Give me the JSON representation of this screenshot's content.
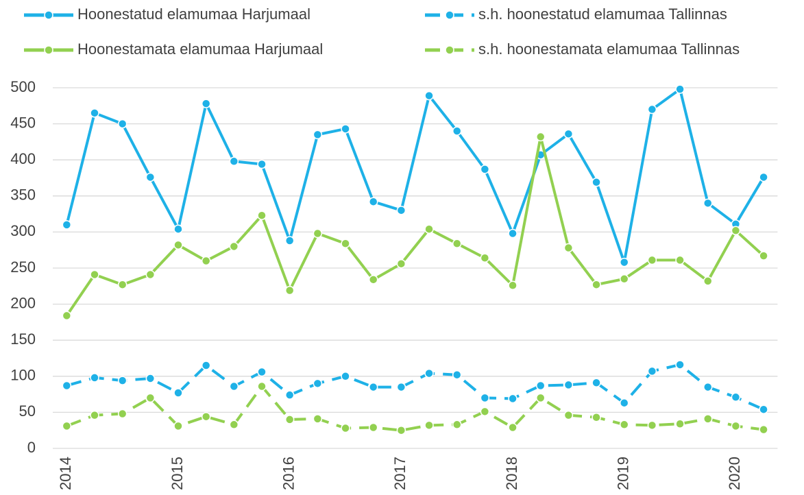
{
  "chart_data": {
    "type": "line",
    "categories": [
      "2014",
      null,
      null,
      null,
      "2015",
      null,
      null,
      null,
      "2016",
      null,
      null,
      null,
      "2017",
      null,
      null,
      null,
      "2018",
      null,
      null,
      null,
      "2019",
      null,
      null,
      null,
      "2020",
      null
    ],
    "series": [
      {
        "name": "Hoonestatud elamumaa Harjumaal",
        "color": "#1eb1e7",
        "dashed": false,
        "values": [
          310,
          465,
          450,
          376,
          304,
          478,
          398,
          394,
          288,
          435,
          443,
          342,
          330,
          489,
          440,
          387,
          298,
          407,
          436,
          369,
          258,
          470,
          498,
          340,
          311,
          376
        ]
      },
      {
        "name": "s.h. hoonestatud elamumaa Tallinnas",
        "color": "#1eb1e7",
        "dashed": true,
        "values": [
          87,
          98,
          94,
          97,
          77,
          115,
          86,
          106,
          74,
          90,
          100,
          85,
          85,
          104,
          102,
          70,
          69,
          87,
          88,
          91,
          63,
          107,
          116,
          85,
          71,
          54
        ]
      },
      {
        "name": "Hoonestamata elamumaa Harjumaal",
        "color": "#92d050",
        "dashed": false,
        "values": [
          184,
          241,
          227,
          241,
          282,
          260,
          280,
          323,
          219,
          298,
          284,
          234,
          256,
          304,
          284,
          264,
          226,
          432,
          278,
          227,
          235,
          261,
          261,
          232,
          302,
          267
        ]
      },
      {
        "name": "s.h. hoonestamata elamumaa Tallinnas",
        "color": "#92d050",
        "dashed": true,
        "values": [
          31,
          46,
          48,
          70,
          31,
          44,
          33,
          86,
          40,
          41,
          28,
          29,
          25,
          32,
          33,
          51,
          29,
          70,
          46,
          43,
          33,
          32,
          34,
          41,
          31,
          26
        ]
      }
    ],
    "ylim": [
      0,
      500
    ],
    "yticks": [
      0,
      50,
      100,
      150,
      200,
      250,
      300,
      350,
      400,
      450,
      500
    ],
    "grid": true
  }
}
